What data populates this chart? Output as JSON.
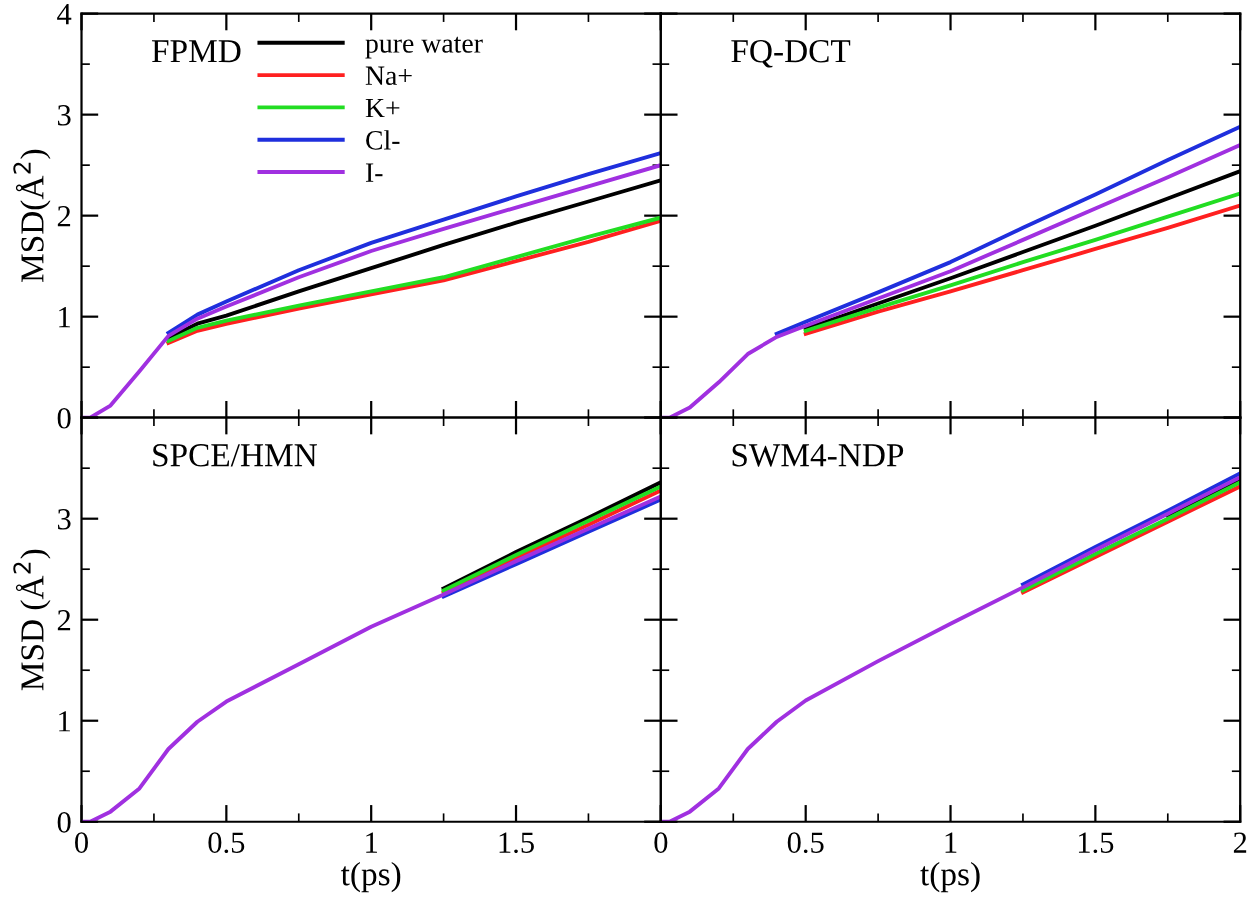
{
  "chart_data": [
    {
      "type": "line",
      "title": "FPMD",
      "ylabel": "MSD(Å$^{2}$)",
      "x": [
        0,
        0.03,
        0.1,
        0.2,
        0.3,
        0.4,
        0.5,
        0.75,
        1,
        1.25,
        1.5,
        1.75,
        2
      ],
      "xlim": [
        0,
        2
      ],
      "ylim": [
        0,
        4
      ],
      "xticks": [
        0,
        0.5,
        1,
        1.5,
        2
      ],
      "yticks": [
        0,
        1,
        2,
        3,
        4
      ],
      "tick_labels": "y",
      "legend": "top",
      "grid": false,
      "series": [
        {
          "name": "pure water",
          "color": "#000000",
          "values": [
            null,
            null,
            null,
            null,
            0.79,
            0.93,
            1.01,
            1.25,
            1.48,
            1.71,
            1.93,
            2.14,
            2.35
          ]
        },
        {
          "name": "Na+",
          "color": "#ff2020",
          "values": [
            null,
            null,
            null,
            null,
            0.74,
            0.86,
            0.93,
            1.08,
            1.22,
            1.36,
            1.55,
            1.74,
            1.95
          ]
        },
        {
          "name": "K+",
          "color": "#22dd22",
          "values": [
            null,
            null,
            null,
            null,
            0.76,
            0.89,
            0.96,
            1.11,
            1.25,
            1.39,
            1.59,
            1.79,
            1.98
          ]
        },
        {
          "name": "Cl-",
          "color": "#1f2fdd",
          "values": [
            null,
            null,
            null,
            null,
            0.84,
            1.02,
            1.15,
            1.46,
            1.73,
            1.96,
            2.19,
            2.41,
            2.62
          ]
        },
        {
          "name": "I-",
          "color": "#a030e0",
          "values": [
            0,
            0,
            0.12,
            0.46,
            0.81,
            0.98,
            1.1,
            1.39,
            1.65,
            1.87,
            2.08,
            2.29,
            2.5
          ]
        }
      ]
    },
    {
      "type": "line",
      "title": "FQ-DCT",
      "x": [
        0,
        0.03,
        0.1,
        0.2,
        0.3,
        0.4,
        0.5,
        0.75,
        1,
        1.25,
        1.5,
        1.75,
        2
      ],
      "xlim": [
        0,
        2
      ],
      "ylim": [
        0,
        4
      ],
      "xticks": [
        0,
        0.5,
        1,
        1.5,
        2
      ],
      "yticks": [
        0,
        1,
        2,
        3,
        4
      ],
      "tick_labels": false,
      "grid": false,
      "series": [
        {
          "color": "#000000",
          "values": [
            null,
            null,
            null,
            null,
            null,
            null,
            0.88,
            1.13,
            1.38,
            1.64,
            1.9,
            2.17,
            2.44
          ]
        },
        {
          "color": "#ff2020",
          "values": [
            null,
            null,
            null,
            null,
            null,
            null,
            0.83,
            1.05,
            1.25,
            1.46,
            1.67,
            1.88,
            2.1
          ]
        },
        {
          "color": "#22dd22",
          "values": [
            null,
            null,
            null,
            null,
            null,
            null,
            0.86,
            1.09,
            1.31,
            1.54,
            1.76,
            1.99,
            2.22
          ]
        },
        {
          "color": "#1f2fdd",
          "values": [
            null,
            null,
            null,
            null,
            null,
            0.83,
            0.95,
            1.24,
            1.54,
            1.88,
            2.21,
            2.55,
            2.88
          ]
        },
        {
          "color": "#a030e0",
          "values": [
            0,
            0,
            0.1,
            0.35,
            0.63,
            0.8,
            0.91,
            1.18,
            1.45,
            1.76,
            2.07,
            2.38,
            2.7
          ]
        }
      ]
    },
    {
      "type": "line",
      "title": "SPCE/HMN",
      "xlabel": "t(ps)",
      "ylabel": "MSD (Å$^{2}$)",
      "x": [
        0,
        0.03,
        0.1,
        0.2,
        0.3,
        0.4,
        0.5,
        0.75,
        1,
        1.25,
        1.5,
        1.75,
        2
      ],
      "xlim": [
        0,
        2
      ],
      "ylim": [
        0,
        4
      ],
      "xticks": [
        0,
        0.5,
        1,
        1.5,
        {
          "value": 2,
          "label": null
        }
      ],
      "yticks": [
        0,
        1,
        2,
        3,
        {
          "value": 4,
          "label": null
        }
      ],
      "grid": false,
      "series": [
        {
          "color": "#000000",
          "values": [
            null,
            null,
            null,
            null,
            null,
            null,
            null,
            null,
            null,
            2.31,
            2.67,
            3.01,
            3.36
          ]
        },
        {
          "color": "#ff2020",
          "values": [
            null,
            null,
            null,
            null,
            null,
            null,
            null,
            null,
            null,
            2.27,
            2.61,
            2.94,
            3.28
          ]
        },
        {
          "color": "#22dd22",
          "values": [
            null,
            null,
            null,
            null,
            null,
            null,
            null,
            null,
            null,
            2.29,
            2.64,
            2.98,
            3.32
          ]
        },
        {
          "color": "#1f2fdd",
          "values": [
            null,
            null,
            null,
            null,
            null,
            null,
            null,
            null,
            null,
            2.23,
            2.55,
            2.87,
            3.19
          ]
        },
        {
          "color": "#a030e0",
          "values": [
            0,
            0,
            0.1,
            0.33,
            0.72,
            0.99,
            1.19,
            1.56,
            1.93,
            2.25,
            2.58,
            2.9,
            3.22
          ]
        }
      ]
    },
    {
      "type": "line",
      "title": "SWM4-NDP",
      "xlabel": "t(ps)",
      "x": [
        0,
        0.03,
        0.1,
        0.2,
        0.3,
        0.4,
        0.5,
        0.75,
        1,
        1.25,
        1.5,
        1.75,
        2
      ],
      "xlim": [
        0,
        2
      ],
      "ylim": [
        0,
        4
      ],
      "xticks": [
        0,
        0.5,
        1,
        1.5,
        2
      ],
      "yticks": [
        0,
        1,
        2,
        3,
        4
      ],
      "tick_labels": "x",
      "grid": false,
      "series": [
        {
          "color": "#000000",
          "values": [
            null,
            null,
            null,
            null,
            null,
            null,
            null,
            null,
            null,
            null,
            null,
            3.03,
            3.39
          ]
        },
        {
          "color": "#ff2020",
          "values": [
            null,
            null,
            null,
            null,
            null,
            null,
            null,
            null,
            null,
            2.27,
            2.62,
            2.97,
            3.32
          ]
        },
        {
          "color": "#22dd22",
          "values": [
            null,
            null,
            null,
            null,
            null,
            null,
            null,
            null,
            null,
            2.29,
            2.65,
            3.0,
            3.36
          ]
        },
        {
          "color": "#1f2fdd",
          "values": [
            null,
            null,
            null,
            null,
            null,
            null,
            null,
            null,
            null,
            2.35,
            2.72,
            3.08,
            3.45
          ]
        },
        {
          "color": "#a030e0",
          "values": [
            0,
            0,
            0.1,
            0.33,
            0.72,
            0.99,
            1.2,
            1.59,
            1.96,
            2.32,
            2.69,
            3.05,
            3.41
          ]
        }
      ]
    }
  ]
}
